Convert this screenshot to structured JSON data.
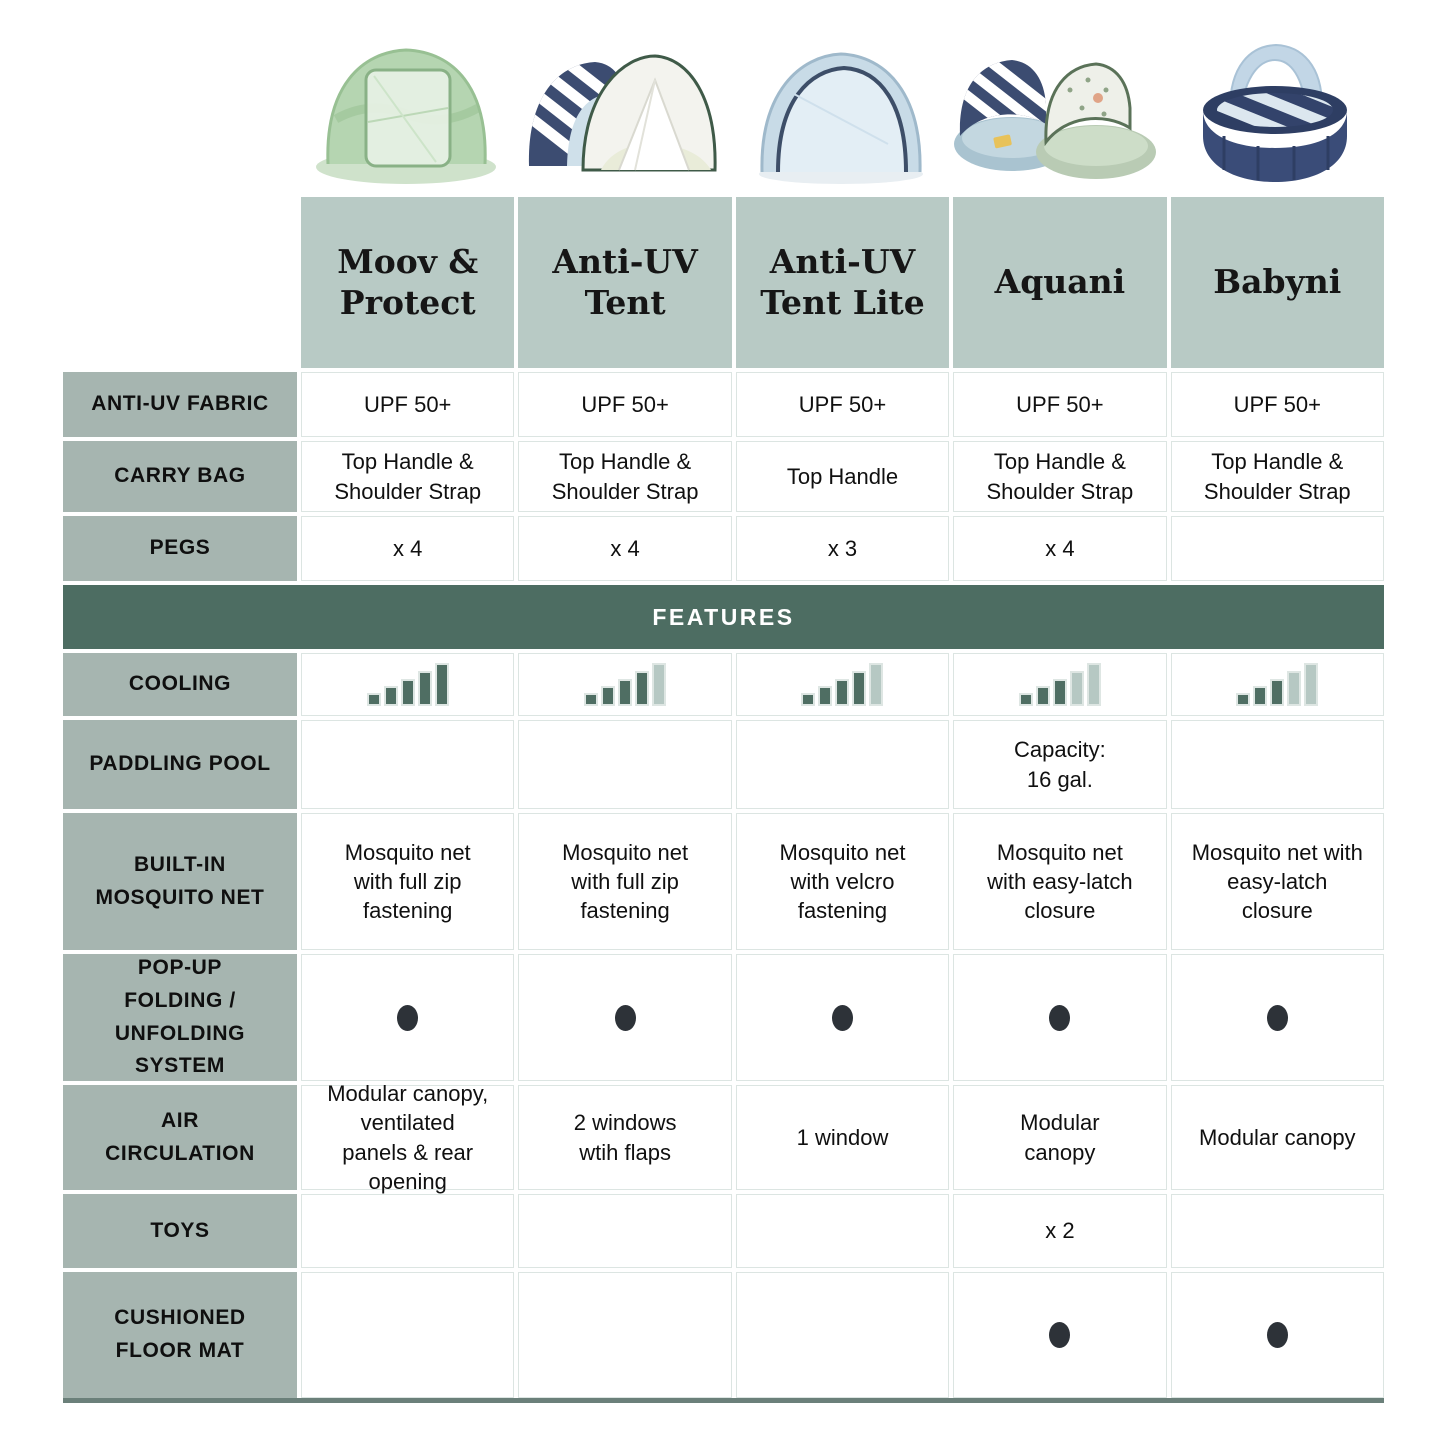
{
  "colors": {
    "header_bg": "#b8cac5",
    "label_bg": "#a6b5b0",
    "features_bg": "#4d6d62",
    "grid_line": "#dce5e2",
    "bar_dark": "#4f6e63",
    "bar_light": "#b6c8c3",
    "dot": "#2d3238",
    "bottom_border": "#6b807a"
  },
  "products": [
    {
      "name": "Moov &\nProtect",
      "image": "moov-protect-tent"
    },
    {
      "name": "Anti-UV\nTent",
      "image": "anti-uv-tent"
    },
    {
      "name": "Anti-UV\nTent Lite",
      "image": "anti-uv-tent-lite"
    },
    {
      "name": "Aquani",
      "image": "aquani-pool-tent"
    },
    {
      "name": "Babyni",
      "image": "babyni-pop-up-playpen"
    }
  ],
  "spec_rows": [
    {
      "label": "ANTI-UV FABRIC",
      "values": [
        "UPF 50+",
        "UPF 50+",
        "UPF 50+",
        "UPF 50+",
        "UPF 50+"
      ]
    },
    {
      "label": "CARRY BAG",
      "values": [
        "Top Handle &\nShoulder Strap",
        "Top Handle &\nShoulder Strap",
        "Top Handle",
        "Top Handle &\nShoulder Strap",
        "Top Handle &\nShoulder Strap"
      ]
    },
    {
      "label": "PEGS",
      "values": [
        "x 4",
        "x 4",
        "x 3",
        "x 4",
        ""
      ]
    }
  ],
  "features_header": "FEATURES",
  "cooling_scale": 5,
  "feature_rows": [
    {
      "label": "COOLING",
      "type": "bars",
      "ratings": [
        5,
        4,
        4,
        3,
        3
      ]
    },
    {
      "label": "PADDLING POOL",
      "type": "text",
      "values": [
        "",
        "",
        "",
        "Capacity:\n16 gal.",
        ""
      ]
    },
    {
      "label": "BUILT-IN\nMOSQUITO NET",
      "type": "text",
      "values": [
        "Mosquito net\nwith full zip\nfastening",
        "Mosquito net\nwith full zip\nfastening",
        "Mosquito net\nwith velcro\nfastening",
        "Mosquito net\nwith easy-latch\nclosure",
        "Mosquito net with\neasy-latch\nclosure"
      ]
    },
    {
      "label": "POP-UP\nFOLDING /\nUNFOLDING\nSYSTEM",
      "type": "dot",
      "values": [
        true,
        true,
        true,
        true,
        true
      ]
    },
    {
      "label": "AIR\nCIRCULATION",
      "type": "text",
      "values": [
        "Modular canopy,\nventilated\npanels & rear\nopening",
        "2 windows\nwtih flaps",
        "1 window",
        "Modular\ncanopy",
        "Modular canopy"
      ]
    },
    {
      "label": "TOYS",
      "type": "text",
      "values": [
        "",
        "",
        "",
        "x 2",
        ""
      ]
    },
    {
      "label": "CUSHIONED\nFLOOR MAT",
      "type": "dot",
      "values": [
        false,
        false,
        false,
        true,
        true
      ]
    }
  ]
}
